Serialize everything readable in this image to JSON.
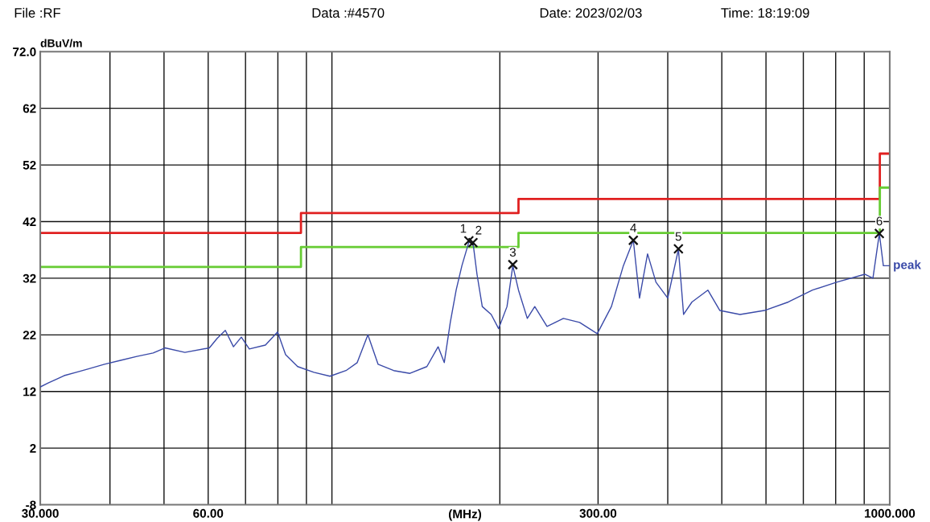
{
  "chart_data": {
    "type": "line",
    "annotations": [
      "File :RF",
      "Data :#4570",
      "Date: 2023/02/03",
      "Time: 18:19:09",
      {
        "text": "1",
        "x": 176,
        "y": 38.6
      },
      {
        "text": "2",
        "x": 179,
        "y": 38.3
      },
      {
        "text": "3",
        "x": 211,
        "y": 34.4
      },
      {
        "text": "4",
        "x": 347,
        "y": 38.7
      },
      {
        "text": "5",
        "x": 418,
        "y": 37.2
      },
      {
        "text": "6",
        "x": 958,
        "y": 39.9
      }
    ],
    "xlabel": "(MHz)",
    "ylabel": "dBuV/m",
    "log": "x",
    "grid": true,
    "xlim": [
      30,
      1000
    ],
    "ylim": [
      -8,
      72
    ],
    "xticks": [
      {
        "value": 30,
        "label": "30.000"
      },
      {
        "value": 40,
        "label": null
      },
      {
        "value": 50,
        "label": null
      },
      {
        "value": 60,
        "label": "60.00"
      },
      {
        "value": 70,
        "label": null
      },
      {
        "value": 80,
        "label": null
      },
      {
        "value": 90,
        "label": null
      },
      {
        "value": 100,
        "label": null
      },
      {
        "value": 200,
        "label": null
      },
      {
        "value": 300,
        "label": "300.00"
      },
      {
        "value": 400,
        "label": null
      },
      {
        "value": 500,
        "label": null
      },
      {
        "value": 600,
        "label": null
      },
      {
        "value": 700,
        "label": null
      },
      {
        "value": 800,
        "label": null
      },
      {
        "value": 900,
        "label": null
      },
      {
        "value": 1000,
        "label": "1000.000"
      }
    ],
    "yticks": [
      -8,
      2,
      12,
      22,
      32,
      42,
      52,
      62,
      {
        "value": 72,
        "label": "72.0"
      }
    ],
    "series": [
      {
        "type": "step",
        "color": "#e02020",
        "x": [
          30,
          88,
          216,
          960,
          1000
        ],
        "values": [
          40,
          43.5,
          46,
          54,
          54
        ]
      },
      {
        "type": "step",
        "color": "#66cc33",
        "x": [
          30,
          88,
          216,
          960,
          1000
        ],
        "values": [
          34,
          37.5,
          40,
          48,
          48
        ]
      },
      {
        "name": "peak",
        "color": "#3a4aa8",
        "x": [
          30,
          31.0,
          32.1,
          33.1,
          34.8,
          36.6,
          39.1,
          41.8,
          44.7,
          47.8,
          50.2,
          54.5,
          60.3,
          62.3,
          64.4,
          66.6,
          68.8,
          71.1,
          76.0,
          79.9,
          82.6,
          86.8,
          92.8,
          99.2,
          106,
          111,
          116,
          121,
          129,
          138,
          148,
          155,
          159,
          163,
          167,
          171,
          176,
          179,
          182,
          186,
          193,
          199,
          206,
          211,
          216,
          224,
          231,
          243,
          260,
          278,
          299,
          317,
          333,
          347,
          356,
          368,
          381,
          400,
          418,
          427,
          442,
          472,
          496,
          539,
          596,
          658,
          727,
          803,
          902,
          933,
          958,
          974,
          1000
        ],
        "values": [
          12.8,
          13.5,
          14.2,
          14.8,
          15.4,
          16.0,
          16.8,
          17.5,
          18.2,
          18.8,
          19.7,
          18.9,
          19.7,
          21.4,
          22.8,
          19.9,
          21.6,
          19.5,
          20.2,
          22.5,
          18.5,
          16.4,
          15.4,
          14.7,
          15.7,
          17.1,
          22.0,
          16.8,
          15.7,
          15.2,
          16.4,
          19.9,
          17.1,
          24.2,
          29.9,
          34.2,
          38.4,
          38.3,
          32.7,
          27.0,
          25.6,
          23.1,
          27.0,
          34.2,
          29.9,
          24.9,
          27.0,
          23.5,
          24.9,
          24.2,
          22.2,
          27.0,
          34.2,
          38.7,
          28.5,
          36.3,
          31.3,
          28.5,
          37.1,
          25.6,
          27.8,
          29.9,
          26.3,
          25.6,
          26.3,
          27.8,
          29.9,
          31.3,
          32.7,
          32.0,
          39.9,
          34.2,
          34.2
        ]
      },
      {
        "type": "scatter",
        "color": "#111111",
        "marker": "cross",
        "x": [
          176,
          179,
          211,
          347,
          418,
          958
        ],
        "values": [
          38.6,
          38.3,
          34.4,
          38.7,
          37.2,
          39.9
        ]
      }
    ]
  }
}
